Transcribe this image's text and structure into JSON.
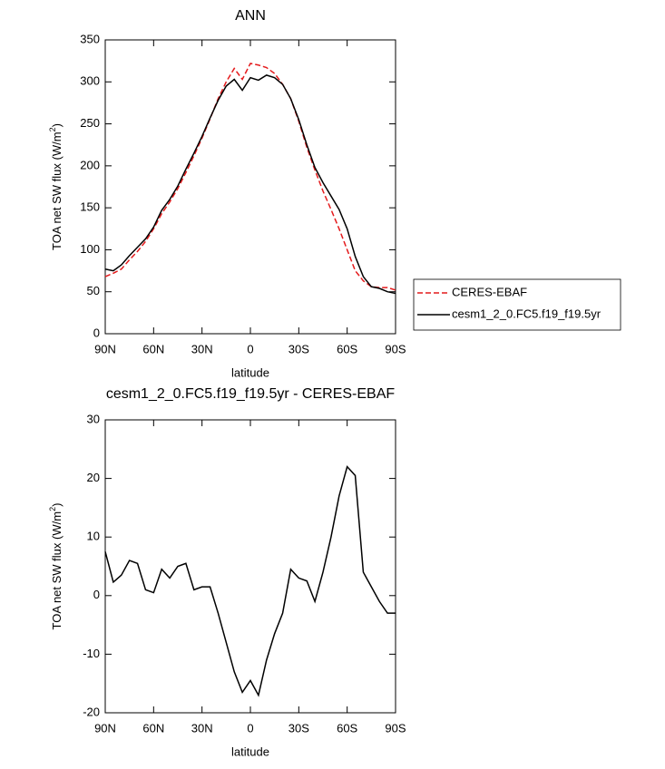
{
  "chart_data": [
    {
      "type": "line",
      "title": "ANN",
      "xlabel": "latitude",
      "ylabel": "TOA net SW flux (W/m",
      "ylabel_sup": "2",
      "ylabel_end": ")",
      "x": [
        90,
        85,
        80,
        75,
        70,
        65,
        60,
        55,
        50,
        45,
        40,
        35,
        30,
        25,
        20,
        15,
        10,
        5,
        0,
        -5,
        -10,
        -15,
        -20,
        -25,
        -30,
        -35,
        -40,
        -45,
        -50,
        -55,
        -60,
        -65,
        -70,
        -75,
        -80,
        -85,
        -90
      ],
      "series": [
        {
          "name": "CERES-EBAF",
          "color": "#e41a1c",
          "dashed": true,
          "values": [
            68,
            72,
            77,
            88,
            98,
            110,
            125,
            143,
            157,
            173,
            192,
            212,
            233,
            256,
            280,
            300,
            316,
            303,
            322,
            320,
            317,
            310,
            297,
            280,
            253,
            222,
            195,
            170,
            148,
            125,
            100,
            75,
            63,
            56,
            55,
            55,
            52
          ]
        },
        {
          "name": "cesm1_2_0.FC5.f19_f19.5yr",
          "color": "#000000",
          "dashed": false,
          "values": [
            77,
            75,
            82,
            93,
            103,
            113,
            127,
            147,
            160,
            176,
            196,
            215,
            235,
            257,
            278,
            295,
            303,
            290,
            305,
            302,
            308,
            305,
            297,
            280,
            255,
            225,
            198,
            180,
            164,
            148,
            125,
            92,
            68,
            56,
            54,
            50,
            48
          ]
        }
      ],
      "xlim": [
        90,
        -90
      ],
      "xticks": [
        {
          "value": 90,
          "label": "90N"
        },
        {
          "value": 60,
          "label": "60N"
        },
        {
          "value": 30,
          "label": "30N"
        },
        0,
        {
          "value": -30,
          "label": "30S"
        },
        {
          "value": -60,
          "label": "60S"
        },
        {
          "value": -90,
          "label": "90S"
        }
      ],
      "ylim": [
        0,
        350
      ],
      "yticks": [
        0,
        50,
        100,
        150,
        200,
        250,
        300,
        350
      ],
      "legend": "right"
    },
    {
      "type": "line",
      "title": "cesm1_2_0.FC5.f19_f19.5yr - CERES-EBAF",
      "xlabel": "latitude",
      "ylabel": "TOA net SW flux (W/m",
      "ylabel_sup": "2",
      "ylabel_end": ")",
      "x": [
        90,
        85,
        80,
        75,
        70,
        65,
        60,
        55,
        50,
        45,
        40,
        35,
        30,
        25,
        20,
        15,
        10,
        5,
        0,
        -5,
        -10,
        -15,
        -20,
        -25,
        -30,
        -35,
        -40,
        -45,
        -50,
        -55,
        -60,
        -65,
        -70,
        -75,
        -80,
        -85,
        -90
      ],
      "color": "#000000",
      "values": [
        7.5,
        2.3,
        3.5,
        6,
        5.5,
        1,
        0.5,
        4.5,
        3,
        5,
        5.5,
        1,
        1.5,
        1.5,
        -3,
        -8,
        -13,
        -16.5,
        -14.5,
        -17,
        -11,
        -6.5,
        -3,
        4.5,
        3,
        2.5,
        -1,
        4,
        10,
        17,
        22,
        20.5,
        4,
        1.5,
        -1,
        -3,
        -3
      ],
      "xlim": [
        90,
        -90
      ],
      "xticks": [
        {
          "value": 90,
          "label": "90N"
        },
        {
          "value": 60,
          "label": "60N"
        },
        {
          "value": 30,
          "label": "30N"
        },
        0,
        {
          "value": -30,
          "label": "30S"
        },
        {
          "value": -60,
          "label": "60S"
        },
        {
          "value": -90,
          "label": "90S"
        }
      ],
      "ylim": [
        -20,
        30
      ],
      "yticks": [
        -20,
        -10,
        0,
        10,
        20,
        30
      ]
    }
  ]
}
